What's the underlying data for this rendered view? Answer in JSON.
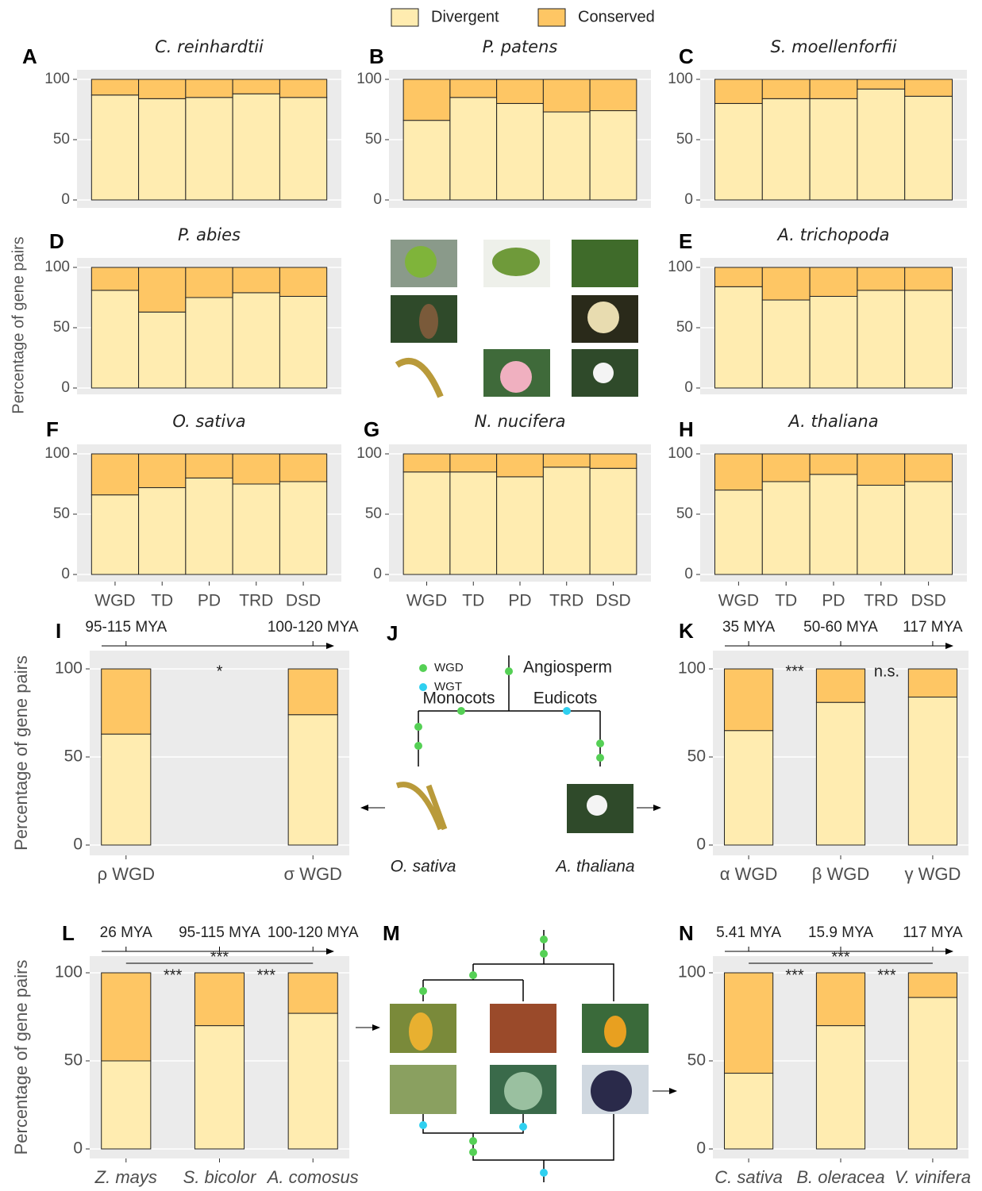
{
  "legend": [
    {
      "name": "Divergent",
      "color": "#ffecb0"
    },
    {
      "name": "Conserved",
      "color": "#fec664"
    }
  ],
  "y_label": "Percentage of gene pairs",
  "chart_data": [
    {
      "type": "stacked_bar",
      "letter": "A",
      "title": "C. reinhardtii",
      "series": [
        {
          "values": [
            87,
            84,
            85,
            88,
            85
          ]
        },
        {
          "values": [
            13,
            16,
            15,
            12,
            15
          ]
        }
      ],
      "ylim": [
        0,
        100
      ],
      "yticks": [
        0,
        50,
        100
      ]
    },
    {
      "type": "stacked_bar",
      "letter": "B",
      "title": "P. patens",
      "series": [
        {
          "values": [
            66,
            85,
            80,
            73,
            74
          ]
        },
        {
          "values": [
            34,
            15,
            20,
            27,
            26
          ]
        }
      ],
      "ylim": [
        0,
        100
      ],
      "yticks": [
        0,
        50,
        100
      ]
    },
    {
      "type": "stacked_bar",
      "letter": "C",
      "title": "S. moellenforfii",
      "series": [
        {
          "values": [
            80,
            84,
            84,
            92,
            86
          ]
        },
        {
          "values": [
            20,
            16,
            16,
            8,
            14
          ]
        }
      ],
      "ylim": [
        0,
        100
      ],
      "yticks": [
        0,
        50,
        100
      ]
    },
    {
      "type": "stacked_bar",
      "letter": "D",
      "title": "P. abies",
      "series": [
        {
          "values": [
            81,
            63,
            75,
            79,
            76
          ]
        },
        {
          "values": [
            19,
            37,
            25,
            21,
            24
          ]
        }
      ],
      "ylim": [
        0,
        100
      ],
      "yticks": [
        0,
        50,
        100
      ]
    },
    {
      "type": "stacked_bar",
      "letter": "E",
      "title": "A. trichopoda",
      "series": [
        {
          "values": [
            84,
            73,
            76,
            81,
            81
          ]
        },
        {
          "values": [
            16,
            27,
            24,
            19,
            19
          ]
        }
      ],
      "ylim": [
        0,
        100
      ],
      "yticks": [
        0,
        50,
        100
      ]
    },
    {
      "type": "stacked_bar",
      "letter": "F",
      "title": "O. sativa",
      "categories": [
        "WGD",
        "TD",
        "PD",
        "TRD",
        "DSD"
      ],
      "series": [
        {
          "values": [
            66,
            72,
            80,
            75,
            77
          ]
        },
        {
          "values": [
            34,
            28,
            20,
            25,
            23
          ]
        }
      ],
      "ylim": [
        0,
        100
      ],
      "yticks": [
        0,
        50,
        100
      ]
    },
    {
      "type": "stacked_bar",
      "letter": "G",
      "title": "N. nucifera",
      "categories": [
        "WGD",
        "TD",
        "PD",
        "TRD",
        "DSD"
      ],
      "series": [
        {
          "values": [
            85,
            85,
            81,
            89,
            88
          ]
        },
        {
          "values": [
            15,
            15,
            19,
            11,
            12
          ]
        }
      ],
      "ylim": [
        0,
        100
      ],
      "yticks": [
        0,
        50,
        100
      ]
    },
    {
      "type": "stacked_bar",
      "letter": "H",
      "title": "A. thaliana",
      "categories": [
        "WGD",
        "TD",
        "PD",
        "TRD",
        "DSD"
      ],
      "series": [
        {
          "values": [
            70,
            77,
            83,
            74,
            77
          ]
        },
        {
          "values": [
            30,
            23,
            17,
            26,
            23
          ]
        }
      ],
      "ylim": [
        0,
        100
      ],
      "yticks": [
        0,
        50,
        100
      ]
    },
    {
      "type": "stacked_bar",
      "letter": "I",
      "y_label": "Percentage of gene pairs",
      "categories": [
        "ρ WGD",
        "σ WGD"
      ],
      "timeline": [
        "95-115 MYA",
        "100-120 MYA"
      ],
      "significance": [
        "*"
      ],
      "series": [
        {
          "values": [
            63,
            74
          ]
        },
        {
          "values": [
            37,
            26
          ]
        }
      ],
      "ylim": [
        0,
        100
      ],
      "yticks": [
        0,
        50,
        100
      ]
    },
    {
      "type": "stacked_bar",
      "letter": "K",
      "categories": [
        "α WGD",
        "β WGD",
        "γ WGD"
      ],
      "timeline": [
        "35 MYA",
        "50-60 MYA",
        "117 MYA"
      ],
      "significance": [
        "***",
        "n.s."
      ],
      "series": [
        {
          "values": [
            65,
            81,
            84
          ]
        },
        {
          "values": [
            35,
            19,
            16
          ]
        }
      ],
      "ylim": [
        0,
        100
      ],
      "yticks": [
        0,
        50,
        100
      ]
    },
    {
      "type": "stacked_bar",
      "letter": "L",
      "y_label": "Percentage of gene pairs",
      "categories": [
        "Z. mays",
        "S. bicolor",
        "A. comosus"
      ],
      "timeline": [
        "26 MYA",
        "95-115 MYA",
        "100-120 MYA"
      ],
      "significance": [
        "***",
        "***",
        "***"
      ],
      "series": [
        {
          "values": [
            50,
            70,
            77
          ]
        },
        {
          "values": [
            50,
            30,
            23
          ]
        }
      ],
      "ylim": [
        0,
        100
      ],
      "yticks": [
        0,
        50,
        100
      ]
    },
    {
      "type": "stacked_bar",
      "letter": "N",
      "categories": [
        "C. sativa",
        "B. oleracea",
        "V. vinifera"
      ],
      "timeline": [
        "5.41 MYA",
        "15.9 MYA",
        "117 MYA"
      ],
      "significance": [
        "***",
        "***",
        "***"
      ],
      "series": [
        {
          "values": [
            43,
            70,
            86
          ]
        },
        {
          "values": [
            57,
            30,
            14
          ]
        }
      ],
      "ylim": [
        0,
        100
      ],
      "yticks": [
        0,
        50,
        100
      ]
    }
  ],
  "diagram_j": {
    "letter": "J",
    "legend": [
      "WGD",
      "WGT"
    ],
    "angiosperm": "Angiosperm",
    "monocots": "Monocots",
    "eudicots": "Eudicots",
    "species": [
      "O. sativa",
      "A. thaliana"
    ]
  },
  "diagram_m": {
    "letter": "M"
  }
}
